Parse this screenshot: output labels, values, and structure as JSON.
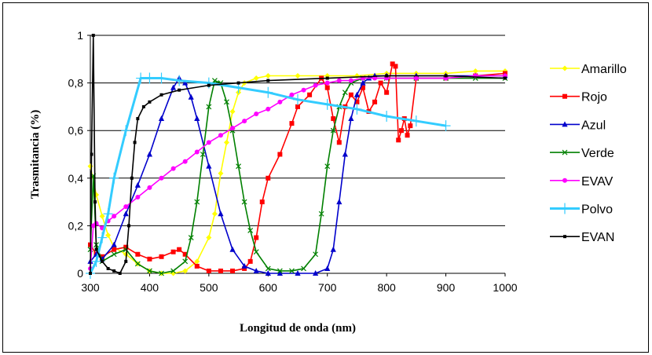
{
  "chart_data": {
    "type": "line",
    "xlabel": "Longitud de onda (nm)",
    "ylabel": "Trasmitancia (%)",
    "xlim": [
      300,
      1000
    ],
    "ylim": [
      0,
      1
    ],
    "x_ticks": [
      "300",
      "400",
      "500",
      "600",
      "700",
      "800",
      "900",
      "1000"
    ],
    "y_ticks": [
      "0",
      "0,2",
      "0,4",
      "0,6",
      "0,8",
      "1"
    ],
    "grid": "horizontal",
    "legend_position": "right",
    "series": [
      {
        "name": "Amarillo",
        "color": "#ffff00",
        "marker": "diamond",
        "x": [
          300,
          310,
          320,
          330,
          340,
          360,
          380,
          400,
          420,
          440,
          460,
          480,
          500,
          510,
          520,
          530,
          540,
          550,
          560,
          580,
          600,
          650,
          700,
          750,
          800,
          850,
          900,
          950,
          1000
        ],
        "y": [
          0.45,
          0.33,
          0.24,
          0.16,
          0.11,
          0.08,
          0.04,
          0.01,
          0.0,
          0.0,
          0.01,
          0.05,
          0.15,
          0.25,
          0.42,
          0.55,
          0.68,
          0.76,
          0.8,
          0.82,
          0.83,
          0.83,
          0.83,
          0.83,
          0.84,
          0.84,
          0.84,
          0.85,
          0.85
        ]
      },
      {
        "name": "Rojo",
        "color": "#ff0000",
        "marker": "square",
        "x": [
          300,
          310,
          320,
          340,
          360,
          380,
          400,
          420,
          440,
          450,
          460,
          480,
          500,
          520,
          540,
          560,
          570,
          580,
          590,
          600,
          620,
          640,
          650,
          670,
          690,
          700,
          710,
          720,
          730,
          740,
          750,
          760,
          770,
          780,
          790,
          800,
          810,
          815,
          820,
          825,
          830,
          835,
          840,
          850,
          900,
          950,
          1000
        ],
        "y": [
          0.12,
          0.08,
          0.07,
          0.1,
          0.11,
          0.08,
          0.06,
          0.07,
          0.09,
          0.1,
          0.08,
          0.03,
          0.01,
          0.01,
          0.01,
          0.02,
          0.05,
          0.15,
          0.3,
          0.4,
          0.5,
          0.63,
          0.7,
          0.75,
          0.82,
          0.78,
          0.65,
          0.55,
          0.7,
          0.75,
          0.72,
          0.78,
          0.68,
          0.72,
          0.8,
          0.76,
          0.88,
          0.87,
          0.56,
          0.6,
          0.65,
          0.58,
          0.62,
          0.82,
          0.82,
          0.83,
          0.84
        ]
      },
      {
        "name": "Azul",
        "color": "#0000cc",
        "marker": "triangle",
        "x": [
          300,
          310,
          320,
          340,
          360,
          380,
          400,
          420,
          440,
          450,
          460,
          470,
          480,
          500,
          520,
          540,
          560,
          580,
          600,
          620,
          650,
          680,
          700,
          710,
          720,
          730,
          740,
          750,
          760,
          770,
          780,
          800,
          850,
          900,
          950,
          1000
        ],
        "y": [
          0.05,
          0.08,
          0.06,
          0.12,
          0.25,
          0.37,
          0.5,
          0.65,
          0.78,
          0.82,
          0.8,
          0.74,
          0.65,
          0.45,
          0.25,
          0.1,
          0.03,
          0.01,
          0.0,
          0.0,
          0.0,
          0.0,
          0.02,
          0.1,
          0.3,
          0.5,
          0.65,
          0.75,
          0.8,
          0.82,
          0.83,
          0.83,
          0.83,
          0.83,
          0.83,
          0.83
        ]
      },
      {
        "name": "Verde",
        "color": "#008000",
        "marker": "x",
        "x": [
          300,
          305,
          310,
          320,
          340,
          360,
          380,
          400,
          420,
          440,
          460,
          470,
          480,
          490,
          500,
          510,
          520,
          530,
          540,
          550,
          560,
          570,
          580,
          600,
          620,
          640,
          660,
          680,
          690,
          700,
          710,
          720,
          730,
          740,
          760,
          800,
          850,
          900,
          950,
          1000
        ],
        "y": [
          0.1,
          0.41,
          0.12,
          0.05,
          0.08,
          0.1,
          0.04,
          0.01,
          0.0,
          0.01,
          0.05,
          0.15,
          0.3,
          0.5,
          0.7,
          0.81,
          0.8,
          0.72,
          0.6,
          0.45,
          0.3,
          0.18,
          0.09,
          0.02,
          0.01,
          0.01,
          0.02,
          0.08,
          0.25,
          0.45,
          0.6,
          0.7,
          0.76,
          0.8,
          0.82,
          0.82,
          0.82,
          0.82,
          0.82,
          0.82
        ]
      },
      {
        "name": "EVAV",
        "color": "#ff00ff",
        "marker": "circle",
        "x": [
          300,
          305,
          310,
          320,
          330,
          340,
          360,
          380,
          400,
          420,
          440,
          460,
          480,
          500,
          520,
          540,
          560,
          580,
          600,
          620,
          640,
          660,
          680,
          700,
          720,
          740,
          760,
          780,
          800,
          850,
          900,
          950,
          1000
        ],
        "y": [
          0.02,
          0.2,
          0.21,
          0.19,
          0.22,
          0.24,
          0.28,
          0.32,
          0.36,
          0.4,
          0.44,
          0.47,
          0.51,
          0.55,
          0.58,
          0.61,
          0.64,
          0.67,
          0.69,
          0.72,
          0.75,
          0.77,
          0.79,
          0.8,
          0.81,
          0.81,
          0.82,
          0.82,
          0.82,
          0.82,
          0.82,
          0.83,
          0.83
        ]
      },
      {
        "name": "Polvo",
        "color": "#33ccff",
        "marker": "plus",
        "x": [
          300,
          310,
          320,
          330,
          340,
          360,
          385,
          400,
          420,
          450,
          500,
          550,
          600,
          650,
          700,
          750,
          800,
          850,
          900
        ],
        "y": [
          0.0,
          0.05,
          0.15,
          0.25,
          0.4,
          0.6,
          0.82,
          0.82,
          0.82,
          0.81,
          0.8,
          0.78,
          0.76,
          0.73,
          0.71,
          0.69,
          0.66,
          0.64,
          0.62
        ]
      },
      {
        "name": "EVAN",
        "color": "#000000",
        "marker": "dash",
        "x": [
          300,
          302,
          305,
          308,
          310,
          320,
          330,
          340,
          350,
          360,
          365,
          370,
          375,
          380,
          390,
          400,
          420,
          450,
          500,
          550,
          600,
          700,
          800,
          900,
          1000
        ],
        "y": [
          0.0,
          0.5,
          1.0,
          0.3,
          0.1,
          0.05,
          0.02,
          0.01,
          0.0,
          0.05,
          0.2,
          0.4,
          0.55,
          0.65,
          0.7,
          0.72,
          0.75,
          0.77,
          0.79,
          0.8,
          0.81,
          0.82,
          0.83,
          0.83,
          0.82
        ]
      }
    ]
  }
}
